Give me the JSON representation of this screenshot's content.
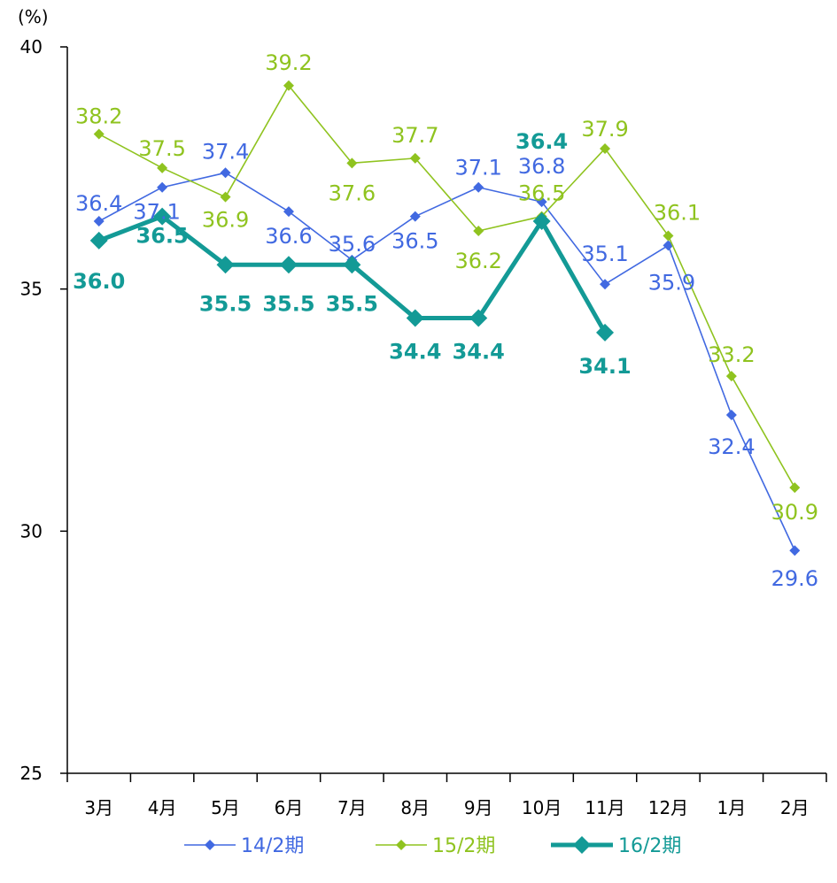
{
  "chart_data": {
    "type": "line",
    "y_unit": "(%)",
    "ylim": [
      25,
      40
    ],
    "yticks": [
      25,
      30,
      35,
      40
    ],
    "categories": [
      "3月",
      "4月",
      "5月",
      "6月",
      "7月",
      "8月",
      "9月",
      "10月",
      "11月",
      "12月",
      "1月",
      "2月"
    ],
    "legend_position": "bottom",
    "grid": false,
    "series": [
      {
        "name": "14/2期",
        "color": "#4169e1",
        "values": [
          36.4,
          37.1,
          37.4,
          36.6,
          35.6,
          36.5,
          37.1,
          36.8,
          35.1,
          35.9,
          32.4,
          29.6
        ],
        "labels": [
          "36.4",
          "37.1",
          "37.4",
          "36.6",
          "35.6",
          "36.5",
          "37.1",
          "36.8",
          "35.1",
          "35.9",
          "32.4",
          "29.6"
        ]
      },
      {
        "name": "15/2期",
        "color": "#8fc31f",
        "values": [
          38.2,
          37.5,
          36.9,
          39.2,
          37.6,
          37.7,
          36.2,
          36.5,
          37.9,
          36.1,
          33.2,
          30.9
        ],
        "labels": [
          "38.2",
          "37.5",
          "36.9",
          "39.2",
          "37.6",
          "37.7",
          "36.2",
          "36.5",
          "37.9",
          "36.1",
          "33.2",
          "30.9"
        ]
      },
      {
        "name": "16/2期",
        "color": "#139a96",
        "values": [
          36.0,
          36.5,
          35.5,
          35.5,
          35.5,
          34.4,
          34.4,
          36.4,
          34.1,
          null,
          null,
          null
        ],
        "labels": [
          "36.0",
          "36.5",
          "35.5",
          "35.5",
          "35.5",
          "34.4",
          "34.4",
          "36.4",
          "34.1",
          null,
          null,
          null
        ]
      }
    ]
  }
}
